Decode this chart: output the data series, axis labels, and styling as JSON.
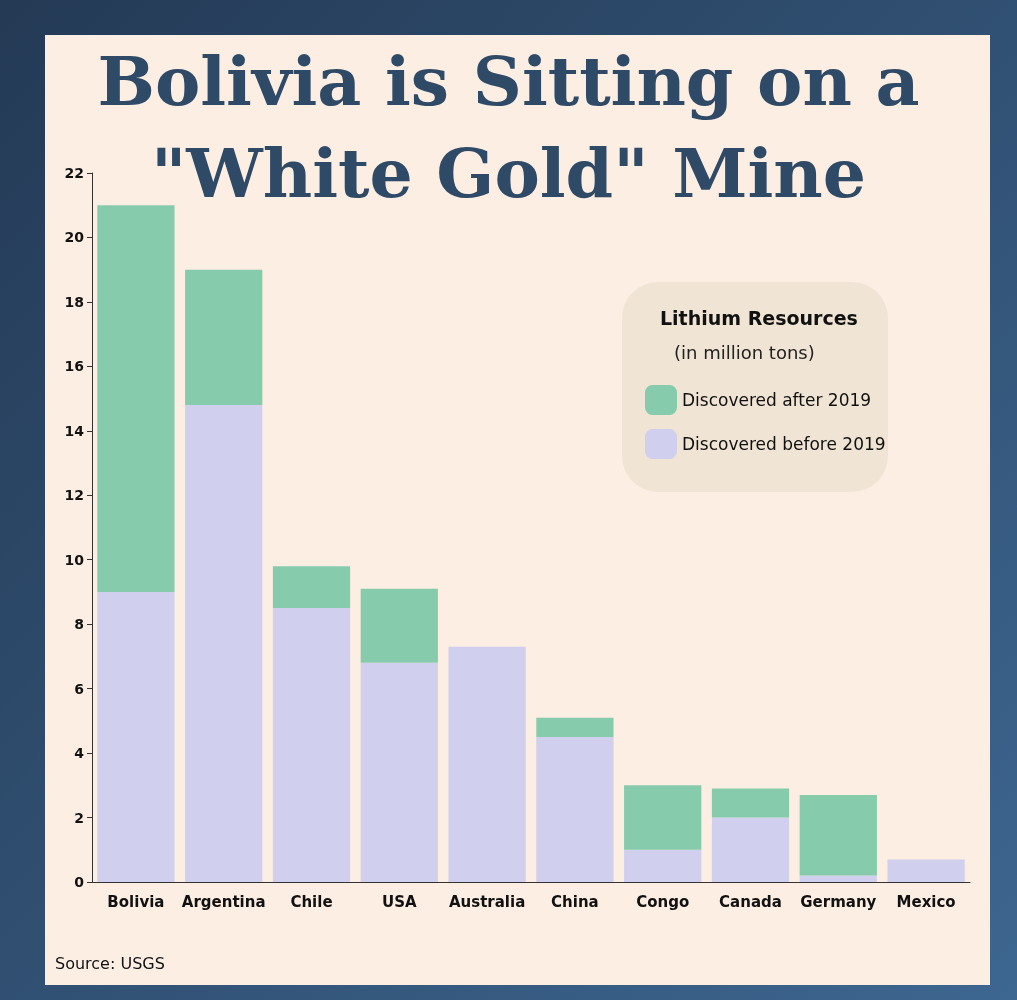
{
  "chart_data": {
    "type": "bar",
    "title": "Bolivia is Sitting on a\n\"White Gold\" Mine",
    "legend_title": "Lithium Resources",
    "ylabel": "(in million tons)",
    "categories": [
      "Bolivia",
      "Argentina",
      "Chile",
      "USA",
      "Australia",
      "China",
      "Congo",
      "Canada",
      "Germany",
      "Mexico"
    ],
    "stacked": true,
    "series": [
      {
        "name": "Discovered before 2019",
        "color": "#d0cfee",
        "values": [
          9,
          14.8,
          8.5,
          6.8,
          7.3,
          4.5,
          1.0,
          2.0,
          0.2,
          0.7
        ]
      },
      {
        "name": "Discovered after 2019",
        "color": "#86cbab",
        "values": [
          12,
          4.2,
          1.3,
          2.3,
          0,
          0.6,
          2.0,
          0.9,
          2.5,
          0
        ]
      }
    ],
    "ylim": [
      0,
      22
    ],
    "yticks": [
      0,
      2,
      4,
      6,
      8,
      10,
      12,
      14,
      16,
      18,
      20,
      22
    ],
    "grid": false,
    "legend": "top right",
    "annotations": [
      "Source: USGS"
    ]
  }
}
